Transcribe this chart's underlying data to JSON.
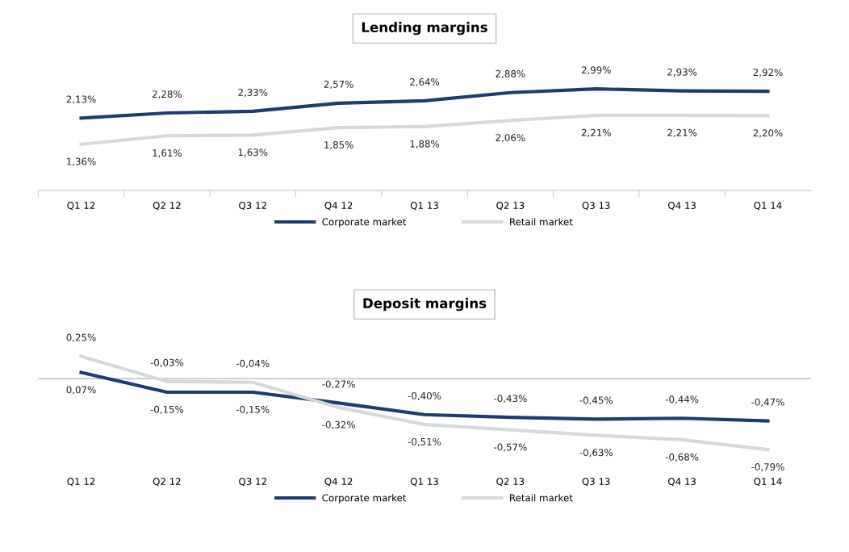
{
  "chart_data": [
    {
      "type": "line",
      "title": "Lending margins",
      "categories": [
        "Q1 12",
        "Q2 12",
        "Q3 12",
        "Q4 12",
        "Q1 13",
        "Q2 13",
        "Q3 13",
        "Q4 13",
        "Q1 14"
      ],
      "series": [
        {
          "name": "Corporate market",
          "color": "#1f3c6e",
          "values": [
            2.13,
            2.28,
            2.33,
            2.57,
            2.64,
            2.88,
            2.99,
            2.93,
            2.92
          ],
          "value_labels": [
            "2,13%",
            "2,28%",
            "2,33%",
            "2,57%",
            "2,64%",
            "2,88%",
            "2,99%",
            "2,93%",
            "2,92%"
          ]
        },
        {
          "name": "Retail market",
          "color": "#d3d8db",
          "values": [
            1.36,
            1.61,
            1.63,
            1.85,
            1.88,
            2.06,
            2.21,
            2.21,
            2.2
          ],
          "value_labels": [
            "1,36%",
            "1,61%",
            "1,63%",
            "1,85%",
            "1,88%",
            "2,06%",
            "2,21%",
            "2,21%",
            "2,20%"
          ]
        }
      ],
      "legend": "bottom",
      "grid": false,
      "marker": "none",
      "line_style": "solid"
    },
    {
      "type": "line",
      "title": "Deposit margins",
      "categories": [
        "Q1 12",
        "Q2 12",
        "Q3 12",
        "Q4 12",
        "Q1 13",
        "Q2 13",
        "Q3 13",
        "Q4 13",
        "Q1 14"
      ],
      "series": [
        {
          "name": "Corporate market",
          "color": "#1f3c6e",
          "values": [
            0.07,
            -0.15,
            -0.15,
            -0.27,
            -0.4,
            -0.43,
            -0.45,
            -0.44,
            -0.47
          ],
          "value_labels": [
            "0,07%",
            "-0,15%",
            "-0,15%",
            "-0,27%",
            "-0,40%",
            "-0,43%",
            "-0,45%",
            "-0,44%",
            "-0,47%"
          ]
        },
        {
          "name": "Retail market",
          "color": "#d3d8db",
          "values": [
            0.25,
            -0.03,
            -0.04,
            -0.32,
            -0.51,
            -0.57,
            -0.63,
            -0.68,
            -0.79
          ],
          "value_labels": [
            "0,25%",
            "-0,03%",
            "-0,04%",
            "-0,32%",
            "-0,51%",
            "-0,57%",
            "-0,63%",
            "-0,68%",
            "-0,79%"
          ]
        }
      ],
      "ref_lines": [
        {
          "axis": "y",
          "value": 0,
          "color": "#bfbfbf"
        }
      ],
      "legend": "bottom",
      "grid": false,
      "marker": "none",
      "line_style": "solid"
    }
  ]
}
